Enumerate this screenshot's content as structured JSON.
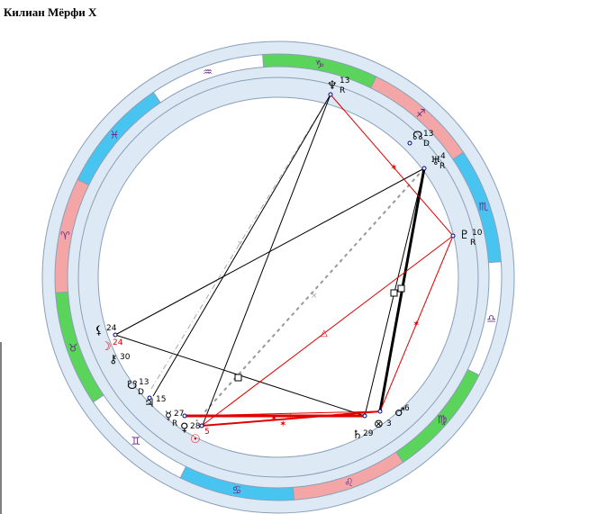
{
  "title": "Килиан Мёрфи X",
  "colors": {
    "fire": "#f4a6a6",
    "earth": "#5ad45a",
    "air": "#ffffff",
    "water": "#48c4f0",
    "band": "#dde9f5",
    "red_aspect": "#e00000",
    "black_aspect": "#000000",
    "gray_aspect": "#999999"
  },
  "zodiac": [
    {
      "sign": "sagittarius",
      "glyph": "♐",
      "element": "fire"
    },
    {
      "sign": "scorpio",
      "glyph": "♏",
      "element": "water"
    },
    {
      "sign": "libra",
      "glyph": "♎",
      "element": "air"
    },
    {
      "sign": "virgo",
      "glyph": "♍",
      "element": "earth"
    },
    {
      "sign": "leo",
      "glyph": "♌",
      "element": "fire"
    },
    {
      "sign": "cancer",
      "glyph": "♋",
      "element": "water"
    },
    {
      "sign": "gemini",
      "glyph": "♊",
      "element": "air"
    },
    {
      "sign": "taurus",
      "glyph": "♉",
      "element": "earth"
    },
    {
      "sign": "aries",
      "glyph": "♈",
      "element": "fire"
    },
    {
      "sign": "pisces",
      "glyph": "♓",
      "element": "water"
    },
    {
      "sign": "aquarius",
      "glyph": "♒",
      "element": "air"
    },
    {
      "sign": "capricorn",
      "glyph": "♑",
      "element": "earth"
    }
  ],
  "planets": [
    {
      "id": "neptune",
      "glyph": "♆",
      "degree": "13",
      "retro": "R"
    },
    {
      "id": "node",
      "glyph": "☊",
      "degree": "13",
      "retro": "D"
    },
    {
      "id": "uranus",
      "glyph": "♅",
      "degree": "4",
      "retro": "R"
    },
    {
      "id": "pluto",
      "glyph": "♇",
      "degree": "10",
      "retro": "R"
    },
    {
      "id": "lilith",
      "glyph": "⚸",
      "degree": "24",
      "retro": ""
    },
    {
      "id": "moon",
      "glyph": "☽",
      "degree": "24",
      "retro": ""
    },
    {
      "id": "chiron",
      "glyph": "⚷",
      "degree": "30",
      "retro": ""
    },
    {
      "id": "saturn-node",
      "glyph": "☋",
      "degree": "13",
      "retro": "D"
    },
    {
      "id": "jupiter",
      "glyph": "♃",
      "degree": "15",
      "retro": ""
    },
    {
      "id": "mercury",
      "glyph": "☿",
      "degree": "27",
      "retro": "R"
    },
    {
      "id": "venus",
      "glyph": "♀",
      "degree": "28",
      "retro": ""
    },
    {
      "id": "sun",
      "glyph": "☉",
      "degree": "5",
      "retro": ""
    },
    {
      "id": "saturn",
      "glyph": "♄",
      "degree": "29",
      "retro": ""
    },
    {
      "id": "fortune",
      "glyph": "⊗",
      "degree": "3",
      "retro": ""
    },
    {
      "id": "mars",
      "glyph": "♂",
      "degree": "6",
      "retro": ""
    }
  ]
}
